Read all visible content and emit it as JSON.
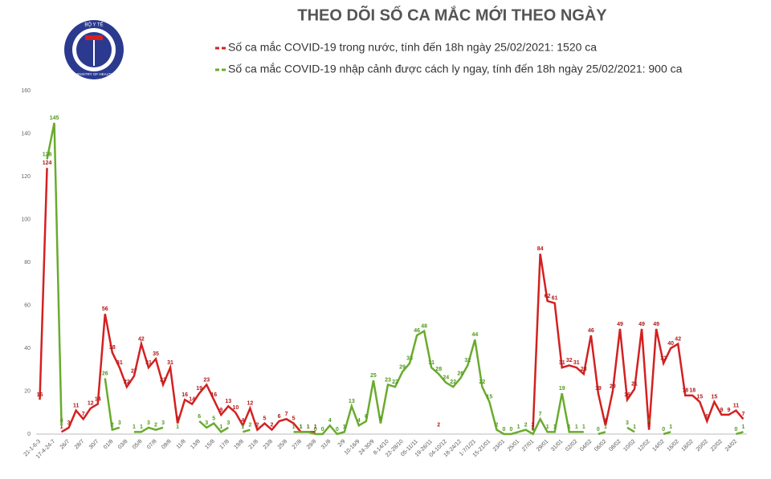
{
  "logo": {
    "top": "BỘ Y TẾ",
    "bottom": "MINISTRY OF HEALTH"
  },
  "chart_data": {
    "type": "line",
    "title": "THEO DÕI SỐ CA MẮC MỚI THEO NGÀY",
    "grid": false,
    "ylim": [
      0,
      160
    ],
    "yticks": [
      0,
      20,
      40,
      60,
      80,
      100,
      120,
      140,
      160
    ],
    "categories": [
      "21-1-6-3",
      null,
      "17-4-24-7",
      null,
      "26/7",
      null,
      "28/7",
      null,
      "30/7",
      null,
      "01/8",
      null,
      "03/8",
      null,
      "05/8",
      null,
      "07/8",
      null,
      "09/8",
      null,
      "11/8",
      null,
      "13/8",
      null,
      "15/8",
      null,
      "17/8",
      null,
      "19/8",
      null,
      "21/8",
      null,
      "23/8",
      null,
      "25/8",
      null,
      "27/8",
      null,
      "29/8",
      null,
      "31/8",
      null,
      "2/9",
      null,
      "10-16/9",
      null,
      "24-30/9",
      null,
      "8-14/10",
      null,
      "22-28/10",
      null,
      "05-11/11",
      null,
      "19-26/11",
      null,
      "04-10/12",
      null,
      "18-24/12",
      null,
      "1-7/1/21",
      null,
      "15-21/01",
      null,
      "23/01",
      null,
      "25/01",
      null,
      "27/01",
      null,
      "29/01",
      null,
      "31/01",
      null,
      "02/02",
      null,
      "04/02",
      null,
      "06/02",
      null,
      "08/02",
      null,
      "10/02",
      null,
      "12/02",
      null,
      "14/02",
      null,
      "16/02",
      null,
      "18/02",
      null,
      "20/02",
      null,
      "22/02",
      null,
      "24/02",
      null
    ],
    "series": [
      {
        "name": "Số ca mắc COVID-19 trong nước, tính đến 18h ngày 25/02/2021: 1520 ca",
        "color": "#d42020",
        "values": [
          16,
          124,
          null,
          1,
          3,
          11,
          7,
          12,
          14,
          56,
          38,
          31,
          22,
          27,
          42,
          31,
          35,
          23,
          31,
          5,
          16,
          14,
          19,
          23,
          16,
          9,
          13,
          10,
          4,
          12,
          2,
          5,
          2,
          6,
          7,
          5,
          1,
          1,
          1,
          null,
          null,
          null,
          1,
          null,
          null,
          null,
          null,
          null,
          null,
          null,
          null,
          null,
          null,
          null,
          null,
          2,
          null,
          null,
          null,
          null,
          null,
          null,
          null,
          null,
          null,
          null,
          null,
          null,
          2,
          84,
          62,
          61,
          31,
          32,
          31,
          28,
          46,
          19,
          4,
          20,
          49,
          16,
          21,
          49,
          2,
          49,
          33,
          40,
          42,
          18,
          18,
          15,
          6,
          15,
          9,
          9,
          11,
          7
        ]
      },
      {
        "name": "Số ca mắc COVID-19 nhập cảnh được cách ly ngay, tính đến 18h ngày 25/02/2021: 900 ca",
        "color": "#6aab2e",
        "values": [
          null,
          128,
          145,
          4,
          null,
          null,
          null,
          null,
          null,
          26,
          2,
          3,
          null,
          1,
          1,
          3,
          2,
          3,
          null,
          1,
          null,
          null,
          6,
          3,
          5,
          1,
          3,
          null,
          1,
          2,
          null,
          null,
          null,
          null,
          null,
          1,
          1,
          1,
          0,
          0,
          4,
          0,
          1,
          13,
          4,
          6,
          25,
          5,
          23,
          22,
          29,
          33,
          46,
          48,
          31,
          28,
          24,
          22,
          26,
          32,
          44,
          22,
          15,
          2,
          0,
          0,
          1,
          2,
          0,
          7,
          1,
          1,
          19,
          1,
          1,
          1,
          null,
          0,
          1,
          null,
          null,
          3,
          1,
          null,
          4,
          null,
          0,
          1,
          null,
          null,
          null,
          null,
          null,
          null,
          null,
          null,
          0,
          1
        ]
      }
    ]
  }
}
